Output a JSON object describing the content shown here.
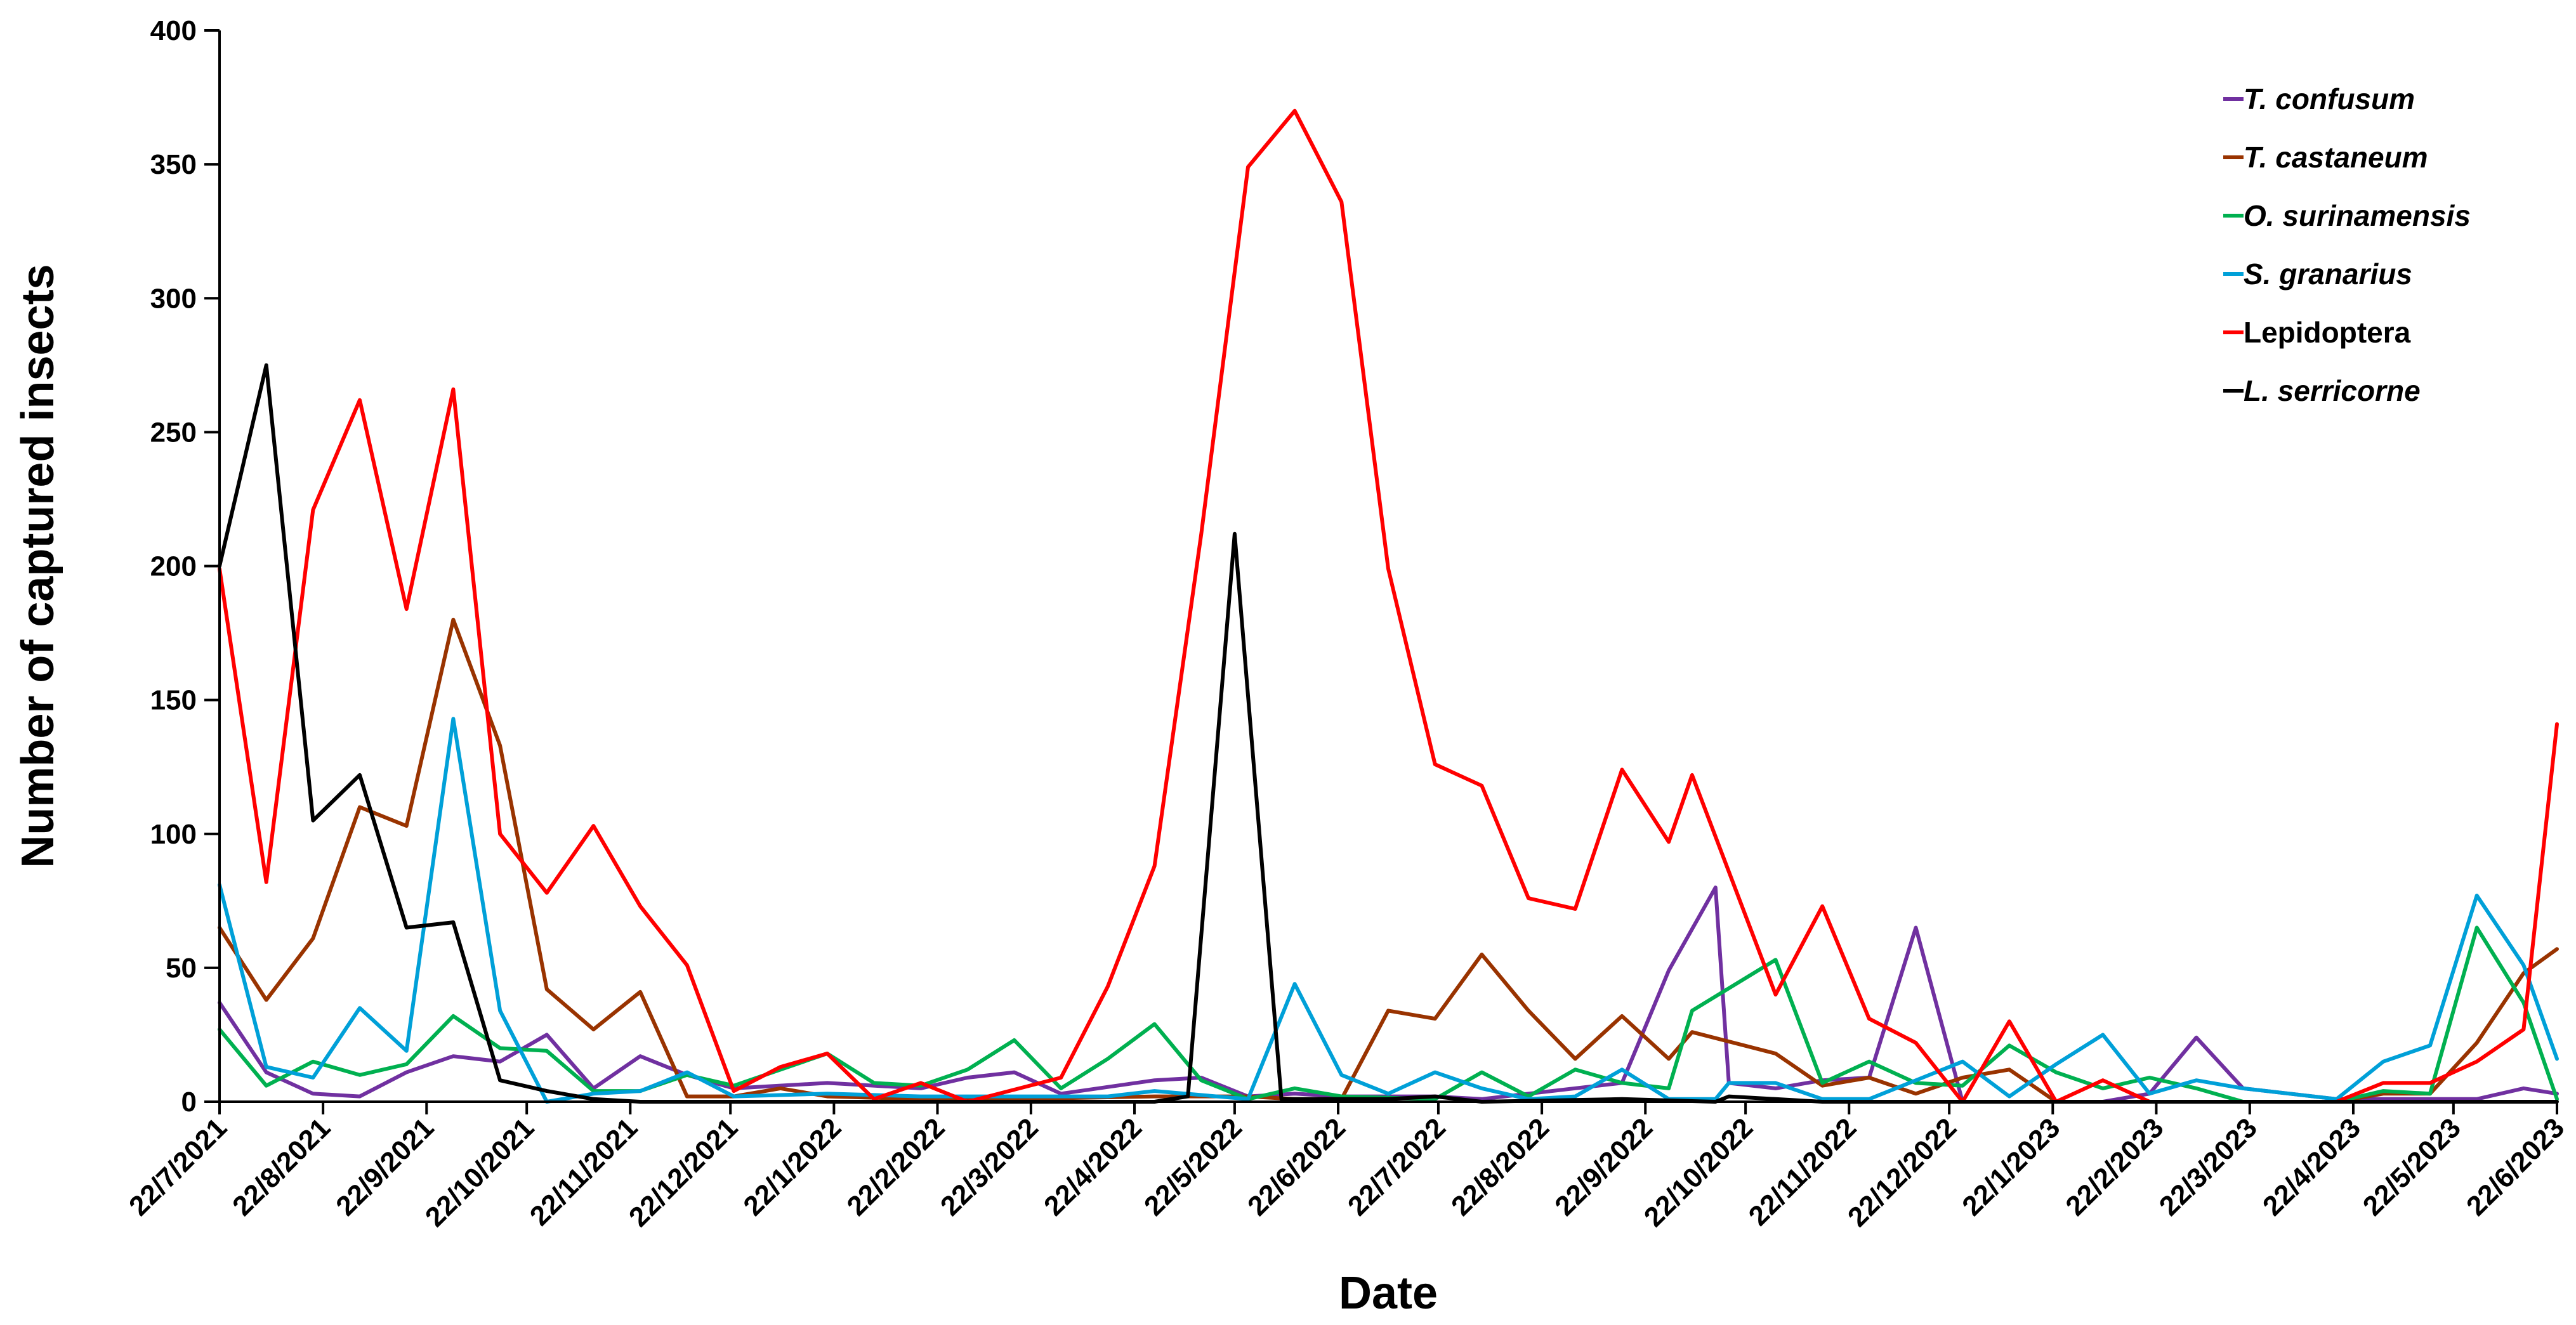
{
  "chart_data": {
    "type": "line",
    "title": "",
    "xlabel": "Date",
    "ylabel": "Number of captured insects",
    "ylim": [
      0,
      400
    ],
    "yticks": [
      0,
      50,
      100,
      150,
      200,
      250,
      300,
      350,
      400
    ],
    "xlim": [
      "2021-07-22",
      "2023-06-22"
    ],
    "x_tick_labels": [
      "22/7/2021",
      "22/8/2021",
      "22/9/2021",
      "22/10/2021",
      "22/11/2021",
      "22/12/2021",
      "22/1/2022",
      "22/2/2022",
      "22/3/2022",
      "22/4/2022",
      "22/5/2022",
      "22/6/2022",
      "22/7/2022",
      "22/8/2022",
      "22/9/2022",
      "22/10/2022",
      "22/11/2022",
      "22/12/2022",
      "22/1/2023",
      "22/2/2023",
      "22/3/2023",
      "22/4/2023",
      "22/5/2023",
      "22/6/2023"
    ],
    "x_tick_dates": [
      "2021-07-22",
      "2021-08-22",
      "2021-09-22",
      "2021-10-22",
      "2021-11-22",
      "2021-12-22",
      "2022-01-22",
      "2022-02-22",
      "2022-03-22",
      "2022-04-22",
      "2022-05-22",
      "2022-06-22",
      "2022-07-22",
      "2022-08-22",
      "2022-09-22",
      "2022-10-22",
      "2022-11-22",
      "2022-12-22",
      "2023-01-22",
      "2023-02-22",
      "2023-03-22",
      "2023-04-22",
      "2023-05-22",
      "2023-06-22"
    ],
    "grid": false,
    "legend_position": "top-right",
    "series": [
      {
        "name": "T. confusum",
        "italic": true,
        "color": "#7030A0",
        "points": [
          [
            "2021-07-22",
            37
          ],
          [
            "2021-08-05",
            11
          ],
          [
            "2021-08-19",
            3
          ],
          [
            "2021-09-02",
            2
          ],
          [
            "2021-09-16",
            11
          ],
          [
            "2021-09-30",
            17
          ],
          [
            "2021-10-14",
            15
          ],
          [
            "2021-10-28",
            25
          ],
          [
            "2021-11-11",
            5
          ],
          [
            "2021-11-25",
            17
          ],
          [
            "2021-12-09",
            10
          ],
          [
            "2021-12-23",
            5
          ],
          [
            "2022-01-20",
            7
          ],
          [
            "2022-02-17",
            5
          ],
          [
            "2022-03-03",
            9
          ],
          [
            "2022-03-17",
            11
          ],
          [
            "2022-03-31",
            3
          ],
          [
            "2022-04-28",
            8
          ],
          [
            "2022-05-12",
            9
          ],
          [
            "2022-05-26",
            2
          ],
          [
            "2022-06-09",
            3
          ],
          [
            "2022-06-23",
            2
          ],
          [
            "2022-07-21",
            2
          ],
          [
            "2022-08-04",
            1
          ],
          [
            "2022-08-18",
            3
          ],
          [
            "2022-09-15",
            7
          ],
          [
            "2022-09-29",
            49
          ],
          [
            "2022-10-13",
            80
          ],
          [
            "2022-10-17",
            7
          ],
          [
            "2022-10-31",
            5
          ],
          [
            "2022-11-14",
            8
          ],
          [
            "2022-11-28",
            9
          ],
          [
            "2022-12-12",
            65
          ],
          [
            "2022-12-26",
            0
          ],
          [
            "2023-01-09",
            0
          ],
          [
            "2023-02-06",
            0
          ],
          [
            "2023-02-20",
            3
          ],
          [
            "2023-03-06",
            24
          ],
          [
            "2023-03-20",
            5
          ],
          [
            "2023-04-17",
            1
          ],
          [
            "2023-05-01",
            1
          ],
          [
            "2023-05-15",
            1
          ],
          [
            "2023-05-29",
            1
          ],
          [
            "2023-06-12",
            5
          ],
          [
            "2023-06-22",
            3
          ]
        ]
      },
      {
        "name": "T. castaneum",
        "italic": true,
        "color": "#993300",
        "points": [
          [
            "2021-07-22",
            65
          ],
          [
            "2021-08-05",
            38
          ],
          [
            "2021-08-19",
            61
          ],
          [
            "2021-09-02",
            110
          ],
          [
            "2021-09-16",
            103
          ],
          [
            "2021-09-30",
            180
          ],
          [
            "2021-10-14",
            133
          ],
          [
            "2021-10-28",
            42
          ],
          [
            "2021-11-11",
            27
          ],
          [
            "2021-11-25",
            41
          ],
          [
            "2021-12-09",
            2
          ],
          [
            "2021-12-23",
            2
          ],
          [
            "2022-01-06",
            5
          ],
          [
            "2022-01-20",
            2
          ],
          [
            "2022-02-17",
            1
          ],
          [
            "2022-03-17",
            1
          ],
          [
            "2022-04-28",
            2
          ],
          [
            "2022-05-26",
            2
          ],
          [
            "2022-06-09",
            1
          ],
          [
            "2022-06-23",
            1
          ],
          [
            "2022-07-07",
            34
          ],
          [
            "2022-07-21",
            31
          ],
          [
            "2022-08-04",
            55
          ],
          [
            "2022-08-18",
            34
          ],
          [
            "2022-09-01",
            16
          ],
          [
            "2022-09-15",
            32
          ],
          [
            "2022-09-29",
            16
          ],
          [
            "2022-10-06",
            26
          ],
          [
            "2022-10-31",
            18
          ],
          [
            "2022-11-14",
            6
          ],
          [
            "2022-11-28",
            9
          ],
          [
            "2022-12-12",
            3
          ],
          [
            "2022-12-26",
            9
          ],
          [
            "2023-01-09",
            12
          ],
          [
            "2023-01-23",
            0
          ],
          [
            "2023-02-20",
            0
          ],
          [
            "2023-04-17",
            0
          ],
          [
            "2023-05-01",
            3
          ],
          [
            "2023-05-15",
            3
          ],
          [
            "2023-05-29",
            22
          ],
          [
            "2023-06-12",
            48
          ],
          [
            "2023-06-22",
            57
          ]
        ]
      },
      {
        "name": "O. surinamensis",
        "italic": true,
        "color": "#00B050",
        "points": [
          [
            "2021-07-22",
            27
          ],
          [
            "2021-08-05",
            6
          ],
          [
            "2021-08-19",
            15
          ],
          [
            "2021-09-02",
            10
          ],
          [
            "2021-09-16",
            14
          ],
          [
            "2021-09-30",
            32
          ],
          [
            "2021-10-14",
            20
          ],
          [
            "2021-10-28",
            19
          ],
          [
            "2021-11-11",
            4
          ],
          [
            "2021-11-25",
            4
          ],
          [
            "2021-12-09",
            10
          ],
          [
            "2021-12-23",
            6
          ],
          [
            "2022-01-20",
            18
          ],
          [
            "2022-02-03",
            7
          ],
          [
            "2022-02-17",
            6
          ],
          [
            "2022-03-03",
            12
          ],
          [
            "2022-03-17",
            23
          ],
          [
            "2022-03-31",
            5
          ],
          [
            "2022-04-14",
            16
          ],
          [
            "2022-04-28",
            29
          ],
          [
            "2022-05-12",
            8
          ],
          [
            "2022-05-26",
            1
          ],
          [
            "2022-06-09",
            5
          ],
          [
            "2022-06-23",
            2
          ],
          [
            "2022-07-21",
            1
          ],
          [
            "2022-08-04",
            11
          ],
          [
            "2022-08-18",
            2
          ],
          [
            "2022-09-01",
            12
          ],
          [
            "2022-09-15",
            7
          ],
          [
            "2022-09-29",
            5
          ],
          [
            "2022-10-06",
            34
          ],
          [
            "2022-10-31",
            53
          ],
          [
            "2022-11-14",
            7
          ],
          [
            "2022-11-28",
            15
          ],
          [
            "2022-12-12",
            7
          ],
          [
            "2022-12-26",
            6
          ],
          [
            "2023-01-09",
            21
          ],
          [
            "2023-01-23",
            11
          ],
          [
            "2023-02-06",
            5
          ],
          [
            "2023-02-20",
            9
          ],
          [
            "2023-03-06",
            5
          ],
          [
            "2023-03-20",
            0
          ],
          [
            "2023-04-17",
            0
          ],
          [
            "2023-05-01",
            4
          ],
          [
            "2023-05-15",
            3
          ],
          [
            "2023-05-29",
            65
          ],
          [
            "2023-06-12",
            37
          ],
          [
            "2023-06-22",
            1
          ]
        ]
      },
      {
        "name": "S. granarius",
        "italic": true,
        "color": "#00A0D8",
        "points": [
          [
            "2021-07-22",
            81
          ],
          [
            "2021-08-05",
            13
          ],
          [
            "2021-08-19",
            9
          ],
          [
            "2021-09-02",
            35
          ],
          [
            "2021-09-16",
            19
          ],
          [
            "2021-09-30",
            143
          ],
          [
            "2021-10-14",
            34
          ],
          [
            "2021-10-28",
            0
          ],
          [
            "2021-11-11",
            3
          ],
          [
            "2021-11-25",
            4
          ],
          [
            "2021-12-09",
            11
          ],
          [
            "2021-12-23",
            2
          ],
          [
            "2022-01-20",
            3
          ],
          [
            "2022-02-17",
            2
          ],
          [
            "2022-03-17",
            2
          ],
          [
            "2022-04-14",
            2
          ],
          [
            "2022-04-28",
            4
          ],
          [
            "2022-05-26",
            1
          ],
          [
            "2022-06-09",
            44
          ],
          [
            "2022-06-23",
            10
          ],
          [
            "2022-07-07",
            3
          ],
          [
            "2022-07-21",
            11
          ],
          [
            "2022-08-04",
            5
          ],
          [
            "2022-08-18",
            1
          ],
          [
            "2022-09-01",
            2
          ],
          [
            "2022-09-15",
            12
          ],
          [
            "2022-09-29",
            1
          ],
          [
            "2022-10-13",
            1
          ],
          [
            "2022-10-17",
            7
          ],
          [
            "2022-10-31",
            7
          ],
          [
            "2022-11-14",
            1
          ],
          [
            "2022-11-28",
            1
          ],
          [
            "2022-12-26",
            15
          ],
          [
            "2023-01-09",
            2
          ],
          [
            "2023-01-23",
            14
          ],
          [
            "2023-02-06",
            25
          ],
          [
            "2023-02-20",
            3
          ],
          [
            "2023-03-06",
            8
          ],
          [
            "2023-03-20",
            5
          ],
          [
            "2023-04-17",
            1
          ],
          [
            "2023-05-01",
            15
          ],
          [
            "2023-05-15",
            21
          ],
          [
            "2023-05-29",
            77
          ],
          [
            "2023-06-12",
            51
          ],
          [
            "2023-06-22",
            16
          ]
        ]
      },
      {
        "name": "Lepidoptera",
        "italic": false,
        "color": "#FF0000",
        "points": [
          [
            "2021-07-22",
            199
          ],
          [
            "2021-08-05",
            82
          ],
          [
            "2021-08-19",
            221
          ],
          [
            "2021-09-02",
            262
          ],
          [
            "2021-09-16",
            184
          ],
          [
            "2021-09-30",
            266
          ],
          [
            "2021-10-14",
            100
          ],
          [
            "2021-10-28",
            78
          ],
          [
            "2021-11-11",
            103
          ],
          [
            "2021-11-25",
            73
          ],
          [
            "2021-12-09",
            51
          ],
          [
            "2021-12-23",
            4
          ],
          [
            "2022-01-06",
            13
          ],
          [
            "2022-01-20",
            18
          ],
          [
            "2022-02-03",
            1
          ],
          [
            "2022-02-17",
            7
          ],
          [
            "2022-03-03",
            0
          ],
          [
            "2022-03-31",
            9
          ],
          [
            "2022-04-14",
            43
          ],
          [
            "2022-04-28",
            88
          ],
          [
            "2022-05-12",
            212
          ],
          [
            "2022-05-26",
            349
          ],
          [
            "2022-06-09",
            370
          ],
          [
            "2022-06-23",
            336
          ],
          [
            "2022-07-07",
            199
          ],
          [
            "2022-07-21",
            126
          ],
          [
            "2022-08-04",
            118
          ],
          [
            "2022-08-18",
            76
          ],
          [
            "2022-09-01",
            72
          ],
          [
            "2022-09-15",
            124
          ],
          [
            "2022-09-29",
            97
          ],
          [
            "2022-10-06",
            122
          ],
          [
            "2022-10-31",
            40
          ],
          [
            "2022-11-14",
            73
          ],
          [
            "2022-11-28",
            31
          ],
          [
            "2022-12-12",
            22
          ],
          [
            "2022-12-26",
            0
          ],
          [
            "2023-01-09",
            30
          ],
          [
            "2023-01-23",
            0
          ],
          [
            "2023-02-06",
            8
          ],
          [
            "2023-02-20",
            0
          ],
          [
            "2023-04-17",
            0
          ],
          [
            "2023-05-01",
            7
          ],
          [
            "2023-05-15",
            7
          ],
          [
            "2023-05-29",
            15
          ],
          [
            "2023-06-12",
            27
          ],
          [
            "2023-06-22",
            141
          ]
        ]
      },
      {
        "name": "L. serricorne",
        "italic": true,
        "color": "#000000",
        "points": [
          [
            "2021-07-22",
            200
          ],
          [
            "2021-08-05",
            275
          ],
          [
            "2021-08-19",
            105
          ],
          [
            "2021-09-02",
            122
          ],
          [
            "2021-09-16",
            65
          ],
          [
            "2021-09-30",
            67
          ],
          [
            "2021-10-14",
            8
          ],
          [
            "2021-10-28",
            4
          ],
          [
            "2021-11-11",
            1
          ],
          [
            "2021-11-25",
            0
          ],
          [
            "2021-12-23",
            0
          ],
          [
            "2022-04-28",
            0
          ],
          [
            "2022-05-08",
            2
          ],
          [
            "2022-05-22",
            212
          ],
          [
            "2022-06-05",
            1
          ],
          [
            "2022-07-07",
            1
          ],
          [
            "2022-07-21",
            2
          ],
          [
            "2022-08-04",
            0
          ],
          [
            "2022-09-15",
            1
          ],
          [
            "2022-10-13",
            0
          ],
          [
            "2022-10-17",
            2
          ],
          [
            "2022-11-14",
            0
          ],
          [
            "2023-06-22",
            0
          ]
        ]
      }
    ]
  }
}
